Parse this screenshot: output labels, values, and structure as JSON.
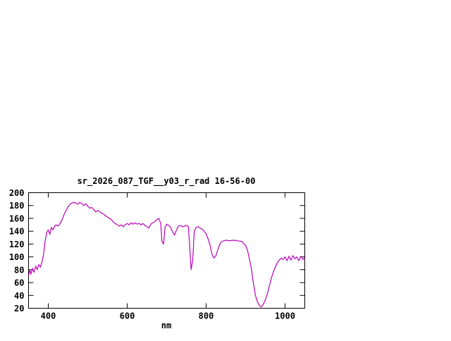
{
  "chart": {
    "title": "sr_2026_087_TGF__y03_r_rad 16-56-00",
    "xlabel": "nm",
    "line_color": "#BB00BB",
    "axis_color": "#000000",
    "background": "#ffffff"
  },
  "chart_data": {
    "type": "line",
    "title": "sr_2026_087_TGF__y03_r_rad 16-56-00",
    "xlabel": "nm",
    "ylabel": "",
    "xlim": [
      350,
      1050
    ],
    "ylim": [
      20,
      200
    ],
    "x_ticks": [
      400,
      600,
      800,
      1000
    ],
    "y_ticks": [
      20,
      40,
      60,
      80,
      100,
      120,
      140,
      160,
      180,
      200
    ],
    "grid": false,
    "legend": "none",
    "series": [
      {
        "name": "sr_2026_087_TGF__y03_r_rad",
        "color": "#BB00BB",
        "x": [
          350,
          353,
          356,
          360,
          364,
          368,
          372,
          376,
          380,
          384,
          388,
          392,
          396,
          400,
          404,
          408,
          412,
          416,
          420,
          425,
          430,
          435,
          440,
          445,
          450,
          455,
          460,
          465,
          470,
          475,
          480,
          485,
          490,
          495,
          500,
          505,
          510,
          515,
          520,
          525,
          530,
          535,
          540,
          545,
          550,
          555,
          560,
          565,
          570,
          575,
          580,
          585,
          590,
          595,
          600,
          605,
          610,
          615,
          620,
          625,
          630,
          635,
          640,
          645,
          650,
          655,
          660,
          665,
          670,
          675,
          680,
          685,
          688,
          692,
          696,
          700,
          705,
          710,
          715,
          720,
          725,
          730,
          735,
          740,
          745,
          750,
          755,
          758,
          762,
          766,
          770,
          775,
          780,
          785,
          790,
          795,
          800,
          805,
          810,
          815,
          820,
          825,
          830,
          835,
          840,
          850,
          860,
          870,
          880,
          890,
          900,
          905,
          910,
          915,
          920,
          925,
          930,
          935,
          940,
          945,
          950,
          955,
          960,
          965,
          970,
          975,
          980,
          985,
          990,
          995,
          1000,
          1005,
          1010,
          1015,
          1020,
          1025,
          1030,
          1035,
          1040,
          1045,
          1050
        ],
        "y": [
          70,
          80,
          73,
          82,
          76,
          86,
          80,
          88,
          84,
          92,
          104,
          124,
          138,
          142,
          135,
          146,
          142,
          148,
          150,
          148,
          152,
          158,
          166,
          172,
          178,
          182,
          184,
          185,
          184,
          182,
          185,
          183,
          180,
          183,
          179,
          176,
          177,
          174,
          170,
          172,
          171,
          168,
          167,
          164,
          162,
          160,
          158,
          154,
          152,
          150,
          148,
          150,
          147,
          150,
          152,
          150,
          153,
          151,
          153,
          151,
          152,
          150,
          152,
          149,
          147,
          145,
          151,
          153,
          155,
          158,
          160,
          152,
          124,
          120,
          146,
          151,
          149,
          146,
          139,
          134,
          142,
          148,
          149,
          147,
          148,
          149,
          147,
          120,
          80,
          95,
          140,
          146,
          147,
          145,
          143,
          140,
          136,
          128,
          118,
          104,
          98,
          102,
          112,
          120,
          124,
          126,
          125,
          126,
          125,
          124,
          118,
          110,
          96,
          80,
          58,
          40,
          30,
          24,
          22,
          26,
          33,
          42,
          54,
          66,
          76,
          84,
          90,
          95,
          98,
          96,
          100,
          94,
          101,
          95,
          102,
          97,
          100,
          94,
          101,
          96,
          99
        ]
      }
    ]
  }
}
